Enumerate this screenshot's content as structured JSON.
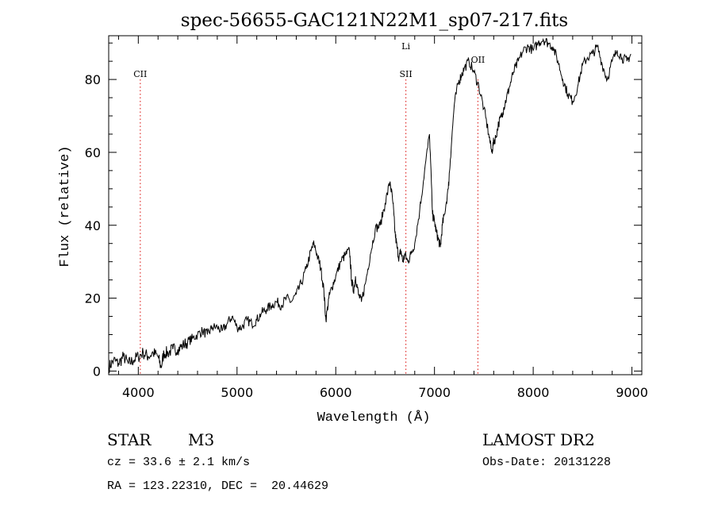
{
  "chart_data": {
    "type": "line",
    "title": "spec-56655-GAC121N22M1_sp07-217.fits",
    "xlabel": "Wavelength (Å)",
    "ylabel": "Flux (relative)",
    "xlim": [
      3700,
      9100
    ],
    "ylim": [
      -1,
      92
    ],
    "x_ticks": [
      4000,
      5000,
      6000,
      7000,
      8000,
      9000
    ],
    "y_ticks": [
      0,
      20,
      40,
      60,
      80
    ],
    "grid": false,
    "series": [
      {
        "x": [
          3700,
          3750,
          3800,
          3850,
          3900,
          3950,
          4000,
          4050,
          4100,
          4150,
          4200,
          4230,
          4260,
          4300,
          4350,
          4400,
          4450,
          4500,
          4550,
          4600,
          4650,
          4700,
          4750,
          4800,
          4850,
          4900,
          4950,
          5000,
          5050,
          5100,
          5150,
          5200,
          5250,
          5300,
          5350,
          5400,
          5450,
          5500,
          5550,
          5600,
          5650,
          5700,
          5750,
          5780,
          5820,
          5850,
          5880,
          5900,
          5930,
          5960,
          6000,
          6050,
          6100,
          6140,
          6160,
          6180,
          6200,
          6230,
          6260,
          6300,
          6350,
          6400,
          6450,
          6500,
          6550,
          6580,
          6600,
          6620,
          6640,
          6660,
          6680,
          6700,
          6730,
          6760,
          6800,
          6850,
          6900,
          6950,
          6980,
          7000,
          7020,
          7040,
          7060,
          7080,
          7100,
          7140,
          7160,
          7200,
          7240,
          7270,
          7300,
          7350,
          7400,
          7450,
          7500,
          7550,
          7580,
          7600,
          7620,
          7650,
          7680,
          7700,
          7730,
          7760,
          7800,
          7850,
          7900,
          7950,
          8000,
          8050,
          8100,
          8150,
          8200,
          8250,
          8300,
          8350,
          8400,
          8450,
          8500,
          8550,
          8600,
          8650,
          8700,
          8750,
          8800,
          8850,
          8900,
          8950,
          8990
        ],
        "y": [
          1,
          3,
          2,
          4,
          2,
          3,
          4,
          5,
          4,
          5,
          4,
          1,
          5,
          5,
          6,
          6,
          7,
          8,
          9,
          10,
          11,
          10,
          12,
          12,
          11,
          13,
          15,
          12,
          12,
          14,
          13,
          14,
          16,
          17,
          18,
          19,
          18,
          20,
          19,
          21,
          24,
          28,
          33,
          35,
          31,
          28,
          22,
          14,
          20,
          23,
          26,
          30,
          32,
          33,
          25,
          22,
          26,
          21,
          19,
          24,
          32,
          39,
          40,
          46,
          52,
          46,
          38,
          34,
          31,
          33,
          30,
          32,
          30,
          32,
          35,
          44,
          55,
          65,
          43,
          41,
          38,
          36,
          34,
          40,
          43,
          50,
          58,
          73,
          79,
          81,
          83,
          85,
          82,
          78,
          72,
          65,
          60,
          63,
          64,
          68,
          70,
          72,
          75,
          78,
          82,
          85,
          88,
          89,
          88,
          90,
          91,
          90,
          89,
          85,
          80,
          76,
          74,
          78,
          84,
          86,
          87,
          89,
          84,
          80,
          85,
          88,
          86,
          85,
          87
        ]
      }
    ],
    "annotations": [
      {
        "label": "CII",
        "x": 4020
      },
      {
        "label": "Li",
        "x": 6710
      },
      {
        "label": "SII",
        "x": 6710
      },
      {
        "label": "OII",
        "x": 7440
      }
    ]
  },
  "info": {
    "object_class": "STAR",
    "subclass": "M3",
    "survey": "LAMOST DR2",
    "redshift": "cz = 33.6 ± 2.1 km/s",
    "obs_date": "Obs-Date: 20131228",
    "coords": "RA = 123.22310, DEC =  20.44629"
  }
}
